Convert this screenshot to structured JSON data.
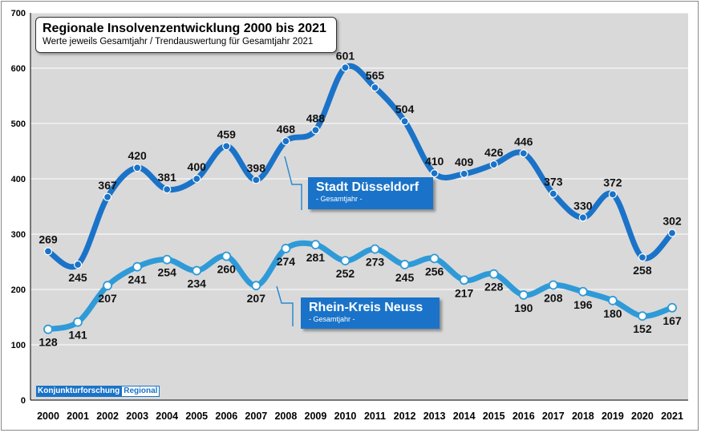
{
  "chart_data": {
    "type": "line",
    "title": "Regionale Insolvenzentwicklung 2000 bis 2021",
    "subtitle": "Werte jeweils Gesamtjahr / Trendauswertung für Gesamtjahr 2021",
    "categories": [
      "2000",
      "2001",
      "2002",
      "2003",
      "2004",
      "2005",
      "2006",
      "2007",
      "2008",
      "2009",
      "2010",
      "2011",
      "2012",
      "2013",
      "2014",
      "2015",
      "2016",
      "2017",
      "2018",
      "2019",
      "2020",
      "2021"
    ],
    "series": [
      {
        "name": "Stadt Düsseldorf",
        "sublabel": "- Gesamtjahr -",
        "values": [
          269,
          245,
          367,
          420,
          381,
          400,
          459,
          398,
          468,
          488,
          601,
          565,
          504,
          410,
          409,
          426,
          446,
          373,
          330,
          372,
          258,
          302
        ],
        "color": "#1a73c8"
      },
      {
        "name": "Rhein-Kreis Neuss",
        "sublabel": "- Gesamtjahr -",
        "values": [
          128,
          141,
          207,
          241,
          254,
          234,
          260,
          207,
          274,
          281,
          252,
          273,
          245,
          256,
          217,
          228,
          190,
          208,
          196,
          180,
          152,
          167
        ],
        "color": "#2f9ad8"
      }
    ],
    "ylim": [
      0,
      700
    ],
    "yticks": [
      0,
      100,
      200,
      300,
      400,
      500,
      600,
      700
    ],
    "grid": true,
    "legend": "inline labels"
  },
  "source": {
    "left": "Konjunkturforschung",
    "right": "Regional"
  }
}
